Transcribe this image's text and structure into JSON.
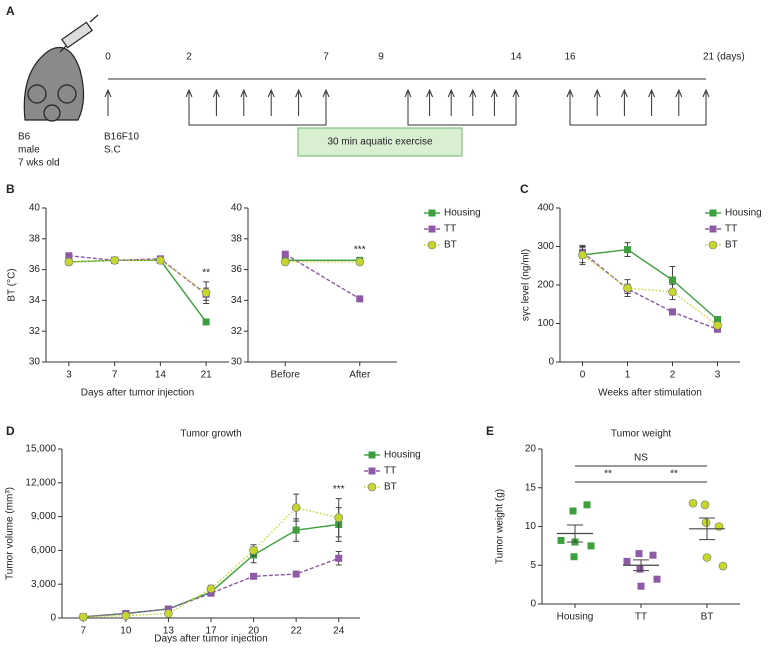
{
  "timeline": {
    "panel": "A",
    "days": [
      "0",
      "2",
      "7",
      "9",
      "14",
      "16",
      "21 (days)"
    ],
    "mouse": [
      "B6",
      "male",
      "7 wks old"
    ],
    "injection": [
      "B16F10",
      "S.C"
    ],
    "exercise": "30 min aquatic exercise"
  },
  "chart_data": [
    {
      "type": "line",
      "panel": "B",
      "categories": [
        "3",
        "7",
        "14",
        "21"
      ],
      "xlabel": "Days after tumor injection",
      "ylabel": "BT (°C)",
      "ylim": [
        30,
        40
      ],
      "yticks": [
        30,
        32,
        34,
        36,
        38,
        40
      ],
      "series": [
        {
          "name": "Housing",
          "color": "#3d9f3d",
          "marker": "square",
          "dash": "solid",
          "values": [
            36.5,
            36.6,
            36.6,
            32.6
          ],
          "errors": [
            0.1,
            0.1,
            0.1,
            0.1
          ]
        },
        {
          "name": "TT",
          "color": "#8e5aa6",
          "marker": "square",
          "dash": "dashed",
          "values": [
            36.9,
            36.6,
            36.7,
            34.4
          ],
          "errors": [
            0.1,
            0.1,
            0.1,
            0.4
          ]
        },
        {
          "name": "BT",
          "color": "#c5d62c",
          "marker": "circle",
          "dash": "dotted",
          "values": [
            36.5,
            36.6,
            36.6,
            34.5
          ],
          "errors": [
            0.1,
            0.1,
            0.1,
            0.7
          ]
        }
      ],
      "annotations": [
        {
          "text": "**",
          "category": "21"
        }
      ]
    },
    {
      "type": "line",
      "categories": [
        "Before",
        "After"
      ],
      "ylim": [
        30,
        40
      ],
      "yticks": [
        30,
        32,
        34,
        36,
        38,
        40
      ],
      "legend": true,
      "series": [
        {
          "name": "Housing",
          "color": "#3d9f3d",
          "marker": "square",
          "dash": "solid",
          "values": [
            36.6,
            36.6
          ],
          "errors": [
            0.1,
            0.1
          ]
        },
        {
          "name": "TT",
          "color": "#8e5aa6",
          "marker": "square",
          "dash": "dashed",
          "values": [
            37.0,
            34.1
          ],
          "errors": [
            0.1,
            0.1
          ]
        },
        {
          "name": "BT",
          "color": "#c5d62c",
          "marker": "circle",
          "dash": "dotted",
          "values": [
            36.5,
            36.5
          ],
          "errors": [
            0.1,
            0.1
          ]
        }
      ],
      "annotations": [
        {
          "text": "***",
          "category": "After"
        }
      ]
    },
    {
      "type": "line",
      "panel": "C",
      "categories": [
        "0",
        "1",
        "2",
        "3"
      ],
      "xlabel": "Weeks after stimulation",
      "ylabel": "sγc level (ng/ml)",
      "ylim": [
        0,
        400
      ],
      "yticks": [
        0,
        100,
        200,
        300,
        400
      ],
      "legend": true,
      "series": [
        {
          "name": "Housing",
          "color": "#3d9f3d",
          "marker": "square",
          "dash": "solid",
          "values": [
            278,
            292,
            213,
            110
          ],
          "errors": [
            20,
            18,
            35,
            8
          ]
        },
        {
          "name": "TT",
          "color": "#8e5aa6",
          "marker": "square",
          "dash": "dashed",
          "values": [
            285,
            190,
            130,
            85
          ],
          "errors": [
            15,
            12,
            8,
            6
          ]
        },
        {
          "name": "BT",
          "color": "#c5d62c",
          "marker": "circle",
          "dash": "dotted",
          "values": [
            278,
            192,
            182,
            95
          ],
          "errors": [
            25,
            22,
            20,
            8
          ]
        }
      ]
    },
    {
      "type": "line",
      "panel": "D",
      "title": "Tumor growth",
      "categories": [
        "7",
        "10",
        "13",
        "17",
        "20",
        "22",
        "24"
      ],
      "xlabel": "Days after tumor injection",
      "ylabel": "Tumor volume (mm³)",
      "ylim": [
        0,
        15000
      ],
      "yticks": [
        0,
        {
          "value": 3000,
          "label": "3,000"
        },
        {
          "value": 6000,
          "label": "6,000"
        },
        {
          "value": 9000,
          "label": "9,000"
        },
        {
          "value": 12000,
          "label": "12,000"
        },
        {
          "value": 15000,
          "label": "15,000"
        }
      ],
      "legend": true,
      "series": [
        {
          "name": "Housing",
          "color": "#3d9f3d",
          "marker": "square",
          "dash": "solid",
          "values": [
            100,
            400,
            800,
            2300,
            5600,
            7800,
            8300
          ],
          "errors": [
            50,
            100,
            150,
            200,
            700,
            1000,
            1500
          ]
        },
        {
          "name": "TT",
          "color": "#8e5aa6",
          "marker": "square",
          "dash": "dashed",
          "values": [
            100,
            400,
            800,
            2200,
            3700,
            3900,
            5300
          ],
          "errors": [
            50,
            100,
            150,
            200,
            200,
            200,
            600
          ]
        },
        {
          "name": "BT",
          "color": "#c5d62c",
          "marker": "circle",
          "dash": "dotted",
          "values": [
            100,
            200,
            400,
            2600,
            6000,
            9800,
            8900
          ],
          "errors": [
            50,
            100,
            150,
            300,
            500,
            1200,
            1700
          ]
        }
      ],
      "annotations": [
        {
          "text": "***",
          "category": "24"
        }
      ]
    },
    {
      "type": "dot",
      "panel": "E",
      "title": "Tumor weight",
      "categories": [
        "Housing",
        "TT",
        "BT"
      ],
      "ylabel": "Tumor weight (g)",
      "ylim": [
        0,
        20
      ],
      "yticks": [
        0,
        5,
        10,
        15,
        20
      ],
      "groups": [
        {
          "color": "#3d9f3d",
          "marker": "square",
          "values": [
            8.2,
            12.0,
            12.8,
            6.1,
            8.0,
            7.5
          ],
          "mean": 9.1,
          "sem": 1.1
        },
        {
          "color": "#8e5aa6",
          "marker": "square",
          "values": [
            5.5,
            6.5,
            6.3,
            4.5,
            2.3,
            3.2
          ],
          "mean": 5.0,
          "sem": 0.7
        },
        {
          "color": "#c5d62c",
          "marker": "circle",
          "values": [
            13.0,
            12.8,
            10.0,
            10.5,
            6.0,
            4.9
          ],
          "mean": 9.7,
          "sem": 1.4
        }
      ],
      "comparisons": [
        {
          "label": "NS",
          "from": "Housing",
          "to": "BT"
        },
        {
          "label": "**",
          "from": "Housing",
          "to": "TT"
        },
        {
          "label": "**",
          "from": "TT",
          "to": "BT"
        }
      ]
    }
  ]
}
